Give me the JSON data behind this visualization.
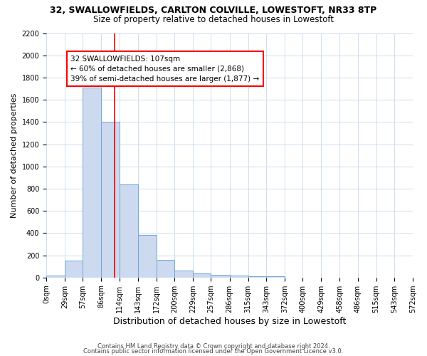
{
  "title": "32, SWALLOWFIELDS, CARLTON COLVILLE, LOWESTOFT, NR33 8TP",
  "subtitle": "Size of property relative to detached houses in Lowestoft",
  "xlabel": "Distribution of detached houses by size in Lowestoft",
  "ylabel": "Number of detached properties",
  "bar_color": "#ccd9ee",
  "bar_edge_color": "#6fa8dc",
  "grid_color": "#c8d8ec",
  "background_color": "#ffffff",
  "property_line_x": 107,
  "property_line_color": "red",
  "annotation_text": "32 SWALLOWFIELDS: 107sqm\n← 60% of detached houses are smaller (2,868)\n39% of semi-detached houses are larger (1,877) →",
  "bin_edges": [
    0,
    29,
    57,
    86,
    114,
    143,
    172,
    200,
    229,
    257,
    286,
    315,
    343,
    372,
    400,
    429,
    458,
    486,
    515,
    543,
    572
  ],
  "bin_counts": [
    15,
    155,
    1710,
    1400,
    835,
    385,
    160,
    65,
    35,
    25,
    20,
    10,
    10,
    0,
    0,
    0,
    0,
    0,
    0,
    0
  ],
  "tick_labels": [
    "0sqm",
    "29sqm",
    "57sqm",
    "86sqm",
    "114sqm",
    "143sqm",
    "172sqm",
    "200sqm",
    "229sqm",
    "257sqm",
    "286sqm",
    "315sqm",
    "343sqm",
    "372sqm",
    "400sqm",
    "429sqm",
    "458sqm",
    "486sqm",
    "515sqm",
    "543sqm",
    "572sqm"
  ],
  "ylim": [
    0,
    2200
  ],
  "yticks": [
    0,
    200,
    400,
    600,
    800,
    1000,
    1200,
    1400,
    1600,
    1800,
    2000,
    2200
  ],
  "footer_line1": "Contains HM Land Registry data © Crown copyright and database right 2024.",
  "footer_line2": "Contains public sector information licensed under the Open Government Licence v3.0.",
  "title_fontsize": 9,
  "subtitle_fontsize": 8.5,
  "tick_fontsize": 7,
  "ylabel_fontsize": 8,
  "xlabel_fontsize": 9,
  "footer_fontsize": 6,
  "annotation_fontsize": 7.5
}
